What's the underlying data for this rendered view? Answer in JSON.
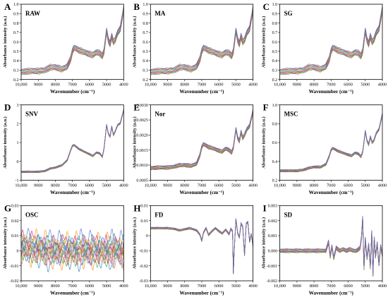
{
  "figure": {
    "x_tick_labels": [
      "10,000",
      "9000",
      "8000",
      "7000",
      "6000",
      "5000",
      "4000"
    ],
    "x_ticks": [
      10000,
      9000,
      8000,
      7000,
      6000,
      5000,
      4000
    ],
    "xlim": [
      10000,
      4000
    ],
    "series_colors": [
      "#1f77b4",
      "#ff7f0e",
      "#2ca02c",
      "#d62728",
      "#9467bd",
      "#8c564b",
      "#e377c2",
      "#7f7f7f",
      "#bcbd22",
      "#17becf",
      "#2e8b57",
      "#c71585",
      "#ff8c00",
      "#4169e1"
    ]
  },
  "chart_data": [
    {
      "letter": "A",
      "name": "RAW",
      "type": "line",
      "xlabel": "Wavenumber (cm⁻¹)",
      "ylabel": "Absorbance intensity (a.u.)",
      "ylim": [
        0.2,
        1.0
      ],
      "ytick_labels": [
        "0.2",
        "0.3",
        "0.4",
        "0.5",
        "0.6",
        "0.7",
        "0.8",
        "0.9",
        "1.0"
      ],
      "x": [
        10000,
        9500,
        9000,
        8600,
        8300,
        8000,
        7600,
        7300,
        7100,
        7000,
        6900,
        6600,
        6300,
        6000,
        5800,
        5600,
        5400,
        5250,
        5150,
        5000,
        4900,
        4800,
        4700,
        4600,
        4500,
        4350,
        4200,
        4000
      ],
      "y_mean": [
        0.28,
        0.29,
        0.29,
        0.3,
        0.33,
        0.33,
        0.31,
        0.34,
        0.42,
        0.5,
        0.54,
        0.51,
        0.49,
        0.47,
        0.46,
        0.49,
        0.48,
        0.45,
        0.5,
        0.72,
        0.62,
        0.58,
        0.66,
        0.6,
        0.62,
        0.7,
        0.74,
        0.95
      ],
      "spread": 0.03
    },
    {
      "letter": "B",
      "name": "MA",
      "type": "line",
      "xlabel": "Wavenumber (cm⁻¹)",
      "ylabel": "Absorbance intensity (a.u.)",
      "ylim": [
        0.2,
        1.0
      ],
      "ytick_labels": [
        "0.2",
        "0.3",
        "0.4",
        "0.5",
        "0.6",
        "0.7",
        "0.8",
        "0.9",
        "1.0"
      ],
      "x": [
        10000,
        9500,
        9000,
        8600,
        8300,
        8000,
        7600,
        7300,
        7100,
        7000,
        6900,
        6600,
        6300,
        6000,
        5800,
        5600,
        5400,
        5250,
        5150,
        5000,
        4900,
        4800,
        4700,
        4600,
        4500,
        4350,
        4200,
        4000
      ],
      "y_mean": [
        0.28,
        0.29,
        0.29,
        0.3,
        0.33,
        0.33,
        0.31,
        0.34,
        0.42,
        0.5,
        0.54,
        0.51,
        0.49,
        0.47,
        0.46,
        0.49,
        0.48,
        0.45,
        0.5,
        0.72,
        0.62,
        0.58,
        0.66,
        0.6,
        0.62,
        0.7,
        0.74,
        0.95
      ],
      "spread": 0.03
    },
    {
      "letter": "C",
      "name": "SG",
      "type": "line",
      "xlabel": "Wavenumber (cm⁻¹)",
      "ylabel": "Absorbance intensity (a.u.)",
      "ylim": [
        0.2,
        1.0
      ],
      "ytick_labels": [
        "0.2",
        "0.3",
        "0.4",
        "0.5",
        "0.6",
        "0.7",
        "0.8",
        "0.9",
        "1.0"
      ],
      "x": [
        10000,
        9500,
        9000,
        8600,
        8300,
        8000,
        7600,
        7300,
        7100,
        7000,
        6900,
        6600,
        6300,
        6000,
        5800,
        5600,
        5400,
        5250,
        5150,
        5000,
        4900,
        4800,
        4700,
        4600,
        4500,
        4350,
        4200,
        4000
      ],
      "y_mean": [
        0.28,
        0.29,
        0.29,
        0.3,
        0.33,
        0.33,
        0.31,
        0.34,
        0.42,
        0.5,
        0.54,
        0.51,
        0.49,
        0.47,
        0.46,
        0.49,
        0.48,
        0.45,
        0.5,
        0.72,
        0.62,
        0.58,
        0.66,
        0.6,
        0.62,
        0.7,
        0.74,
        0.95
      ],
      "spread": 0.03
    },
    {
      "letter": "D",
      "name": "SNV",
      "type": "line",
      "xlabel": "Wavenumber (cm⁻¹)",
      "ylabel": "Absorbance intensity (a.u.)",
      "ylim": [
        -1.5,
        3.0
      ],
      "ytick_labels": [
        "-1",
        "0",
        "1",
        "2",
        "3"
      ],
      "x": [
        10000,
        9500,
        9000,
        8600,
        8300,
        8000,
        7600,
        7300,
        7100,
        7000,
        6900,
        6600,
        6300,
        6000,
        5800,
        5600,
        5400,
        5250,
        5150,
        5000,
        4900,
        4800,
        4700,
        4600,
        4500,
        4350,
        4200,
        4000
      ],
      "y_mean": [
        -1.0,
        -1.0,
        -1.0,
        -0.95,
        -0.8,
        -0.75,
        -0.6,
        -0.3,
        0.3,
        0.55,
        0.6,
        0.35,
        0.2,
        0.05,
        -0.05,
        0.15,
        0.1,
        -0.1,
        0.4,
        1.8,
        1.3,
        1.1,
        1.7,
        1.2,
        1.4,
        1.8,
        1.9,
        2.7
      ],
      "spread": 0.05
    },
    {
      "letter": "E",
      "name": "Nor",
      "type": "line",
      "xlabel": "Wavenumber (cm⁻¹)",
      "ylabel": "Absorbance intensity (a.u.)",
      "ylim": [
        0.0005,
        0.003
      ],
      "ytick_labels": [
        "0.0005",
        "0.0010",
        "0.0015",
        "0.0020",
        "0.0025",
        "0.0030"
      ],
      "x": [
        10000,
        9500,
        9000,
        8600,
        8300,
        8000,
        7600,
        7300,
        7100,
        7000,
        6900,
        6600,
        6300,
        6000,
        5800,
        5600,
        5400,
        5250,
        5150,
        5000,
        4900,
        4800,
        4700,
        4600,
        4500,
        4350,
        4200,
        4000
      ],
      "y_mean": [
        0.0009,
        0.00092,
        0.00092,
        0.00095,
        0.001,
        0.001,
        0.00098,
        0.00105,
        0.00135,
        0.0016,
        0.0017,
        0.0016,
        0.00155,
        0.00148,
        0.00145,
        0.00155,
        0.0015,
        0.00142,
        0.00158,
        0.0022,
        0.0019,
        0.0018,
        0.0021,
        0.0019,
        0.002,
        0.0022,
        0.0023,
        0.0028
      ],
      "spread": 6e-05
    },
    {
      "letter": "F",
      "name": "MSC",
      "type": "line",
      "xlabel": "Wavenumber (cm⁻¹)",
      "ylabel": "Absorbance intensity (a.u.)",
      "ylim": [
        0.2,
        1.0
      ],
      "ytick_labels": [
        "0.2",
        "0.4",
        "0.6",
        "0.8",
        "1.0"
      ],
      "x": [
        10000,
        9500,
        9000,
        8600,
        8300,
        8000,
        7600,
        7300,
        7100,
        7000,
        6900,
        6600,
        6300,
        6000,
        5800,
        5600,
        5400,
        5250,
        5150,
        5000,
        4900,
        4800,
        4700,
        4600,
        4500,
        4350,
        4200,
        4000
      ],
      "y_mean": [
        0.3,
        0.3,
        0.3,
        0.31,
        0.33,
        0.34,
        0.34,
        0.37,
        0.46,
        0.52,
        0.54,
        0.51,
        0.49,
        0.47,
        0.46,
        0.49,
        0.48,
        0.45,
        0.5,
        0.72,
        0.62,
        0.58,
        0.66,
        0.6,
        0.62,
        0.7,
        0.74,
        0.9
      ],
      "spread": 0.012
    },
    {
      "letter": "G",
      "name": "OSC",
      "type": "line",
      "xlabel": "Wavenumber (cm⁻¹)",
      "ylabel": "Absorbance intensity (a.u.)",
      "ylim": [
        -0.02,
        0.03
      ],
      "ytick_labels": [
        "-0.02",
        "-0.01",
        "0",
        "0.01",
        "0.02",
        "0.03"
      ],
      "x": [
        10000,
        9500,
        9000,
        8600,
        8300,
        8000,
        7600,
        7300,
        7100,
        7000,
        6900,
        6600,
        6300,
        6000,
        5800,
        5600,
        5400,
        5250,
        5150,
        5000,
        4900,
        4800,
        4700,
        4600,
        4500,
        4350,
        4200,
        4000
      ],
      "y_mean": [
        0.003,
        0.002,
        0.0015,
        0.001,
        0.0,
        0.0,
        0.0005,
        0.0,
        0.0,
        0.0005,
        0.001,
        0.0,
        0.0005,
        0.0,
        0.0005,
        0.0,
        0.0,
        0.0005,
        0.0,
        0.001,
        0.0,
        0.0005,
        0.0,
        0.0,
        0.001,
        0.0005,
        0.0,
        0.0
      ],
      "spread": 0.007
    },
    {
      "letter": "H",
      "name": "FD",
      "type": "line",
      "xlabel": "Wavenumber (cm⁻¹)",
      "ylabel": "Absorbance intensity (a.u.)",
      "ylim": [
        -0.035,
        0.015
      ],
      "ytick_labels": [
        "-0.03",
        "-0.02",
        "-0.01",
        "0",
        "0.01",
        "0.01"
      ],
      "x": [
        10000,
        9000,
        8600,
        8300,
        8100,
        7700,
        7300,
        7100,
        7000,
        6900,
        6750,
        6600,
        6400,
        6200,
        6000,
        5800,
        5600,
        5400,
        5300,
        5200,
        5150,
        5100,
        5000,
        4900,
        4800,
        4700,
        4600,
        4500,
        4400,
        4300,
        4200,
        4100,
        4000
      ],
      "y_mean": [
        0.0,
        0.0,
        -0.0005,
        -0.0015,
        -0.001,
        0.0,
        -0.0015,
        -0.0045,
        -0.0085,
        -0.003,
        0.0,
        -0.0045,
        -0.002,
        0.0,
        -0.002,
        -0.0035,
        -0.001,
        -0.004,
        -0.0005,
        -0.002,
        -0.03,
        -0.015,
        0.006,
        -0.0035,
        -0.006,
        0.003,
        0.001,
        -0.018,
        0.003,
        0.004,
        -0.009,
        -0.004,
        -0.012
      ],
      "spread": 0.0006
    },
    {
      "letter": "I",
      "name": "SD",
      "type": "line",
      "xlabel": "Wavenumber (cm⁻¹)",
      "ylabel": "Absorbance intensity (a.u.)",
      "ylim": [
        -0.002,
        0.003
      ],
      "ytick_labels": [
        "-0.002",
        "-0.001",
        "0.000",
        "0.001",
        "0.002",
        "0.003"
      ],
      "x": [
        10000,
        9000,
        8600,
        8300,
        8000,
        7700,
        7300,
        7150,
        7050,
        6950,
        6850,
        6700,
        6500,
        6300,
        6100,
        5900,
        5700,
        5500,
        5300,
        5220,
        5150,
        5080,
        5000,
        4900,
        4800,
        4700,
        4620,
        4550,
        4480,
        4400,
        4300,
        4200,
        4100,
        4000
      ],
      "y_mean": [
        0.0,
        0.0,
        0.0,
        0.0,
        0.0,
        0.0,
        0.0,
        0.0006,
        -0.0004,
        0.0003,
        -0.0005,
        0.0002,
        0.0,
        0.0001,
        0.0,
        0.0001,
        0.0,
        0.0,
        0.0002,
        0.0009,
        0.0022,
        -0.0013,
        0.0008,
        -0.0005,
        0.0004,
        -0.0011,
        0.0014,
        -0.0016,
        0.0009,
        -0.0004,
        0.0005,
        -0.0009,
        0.0003,
        -0.0003
      ],
      "spread": 0.00012
    }
  ]
}
